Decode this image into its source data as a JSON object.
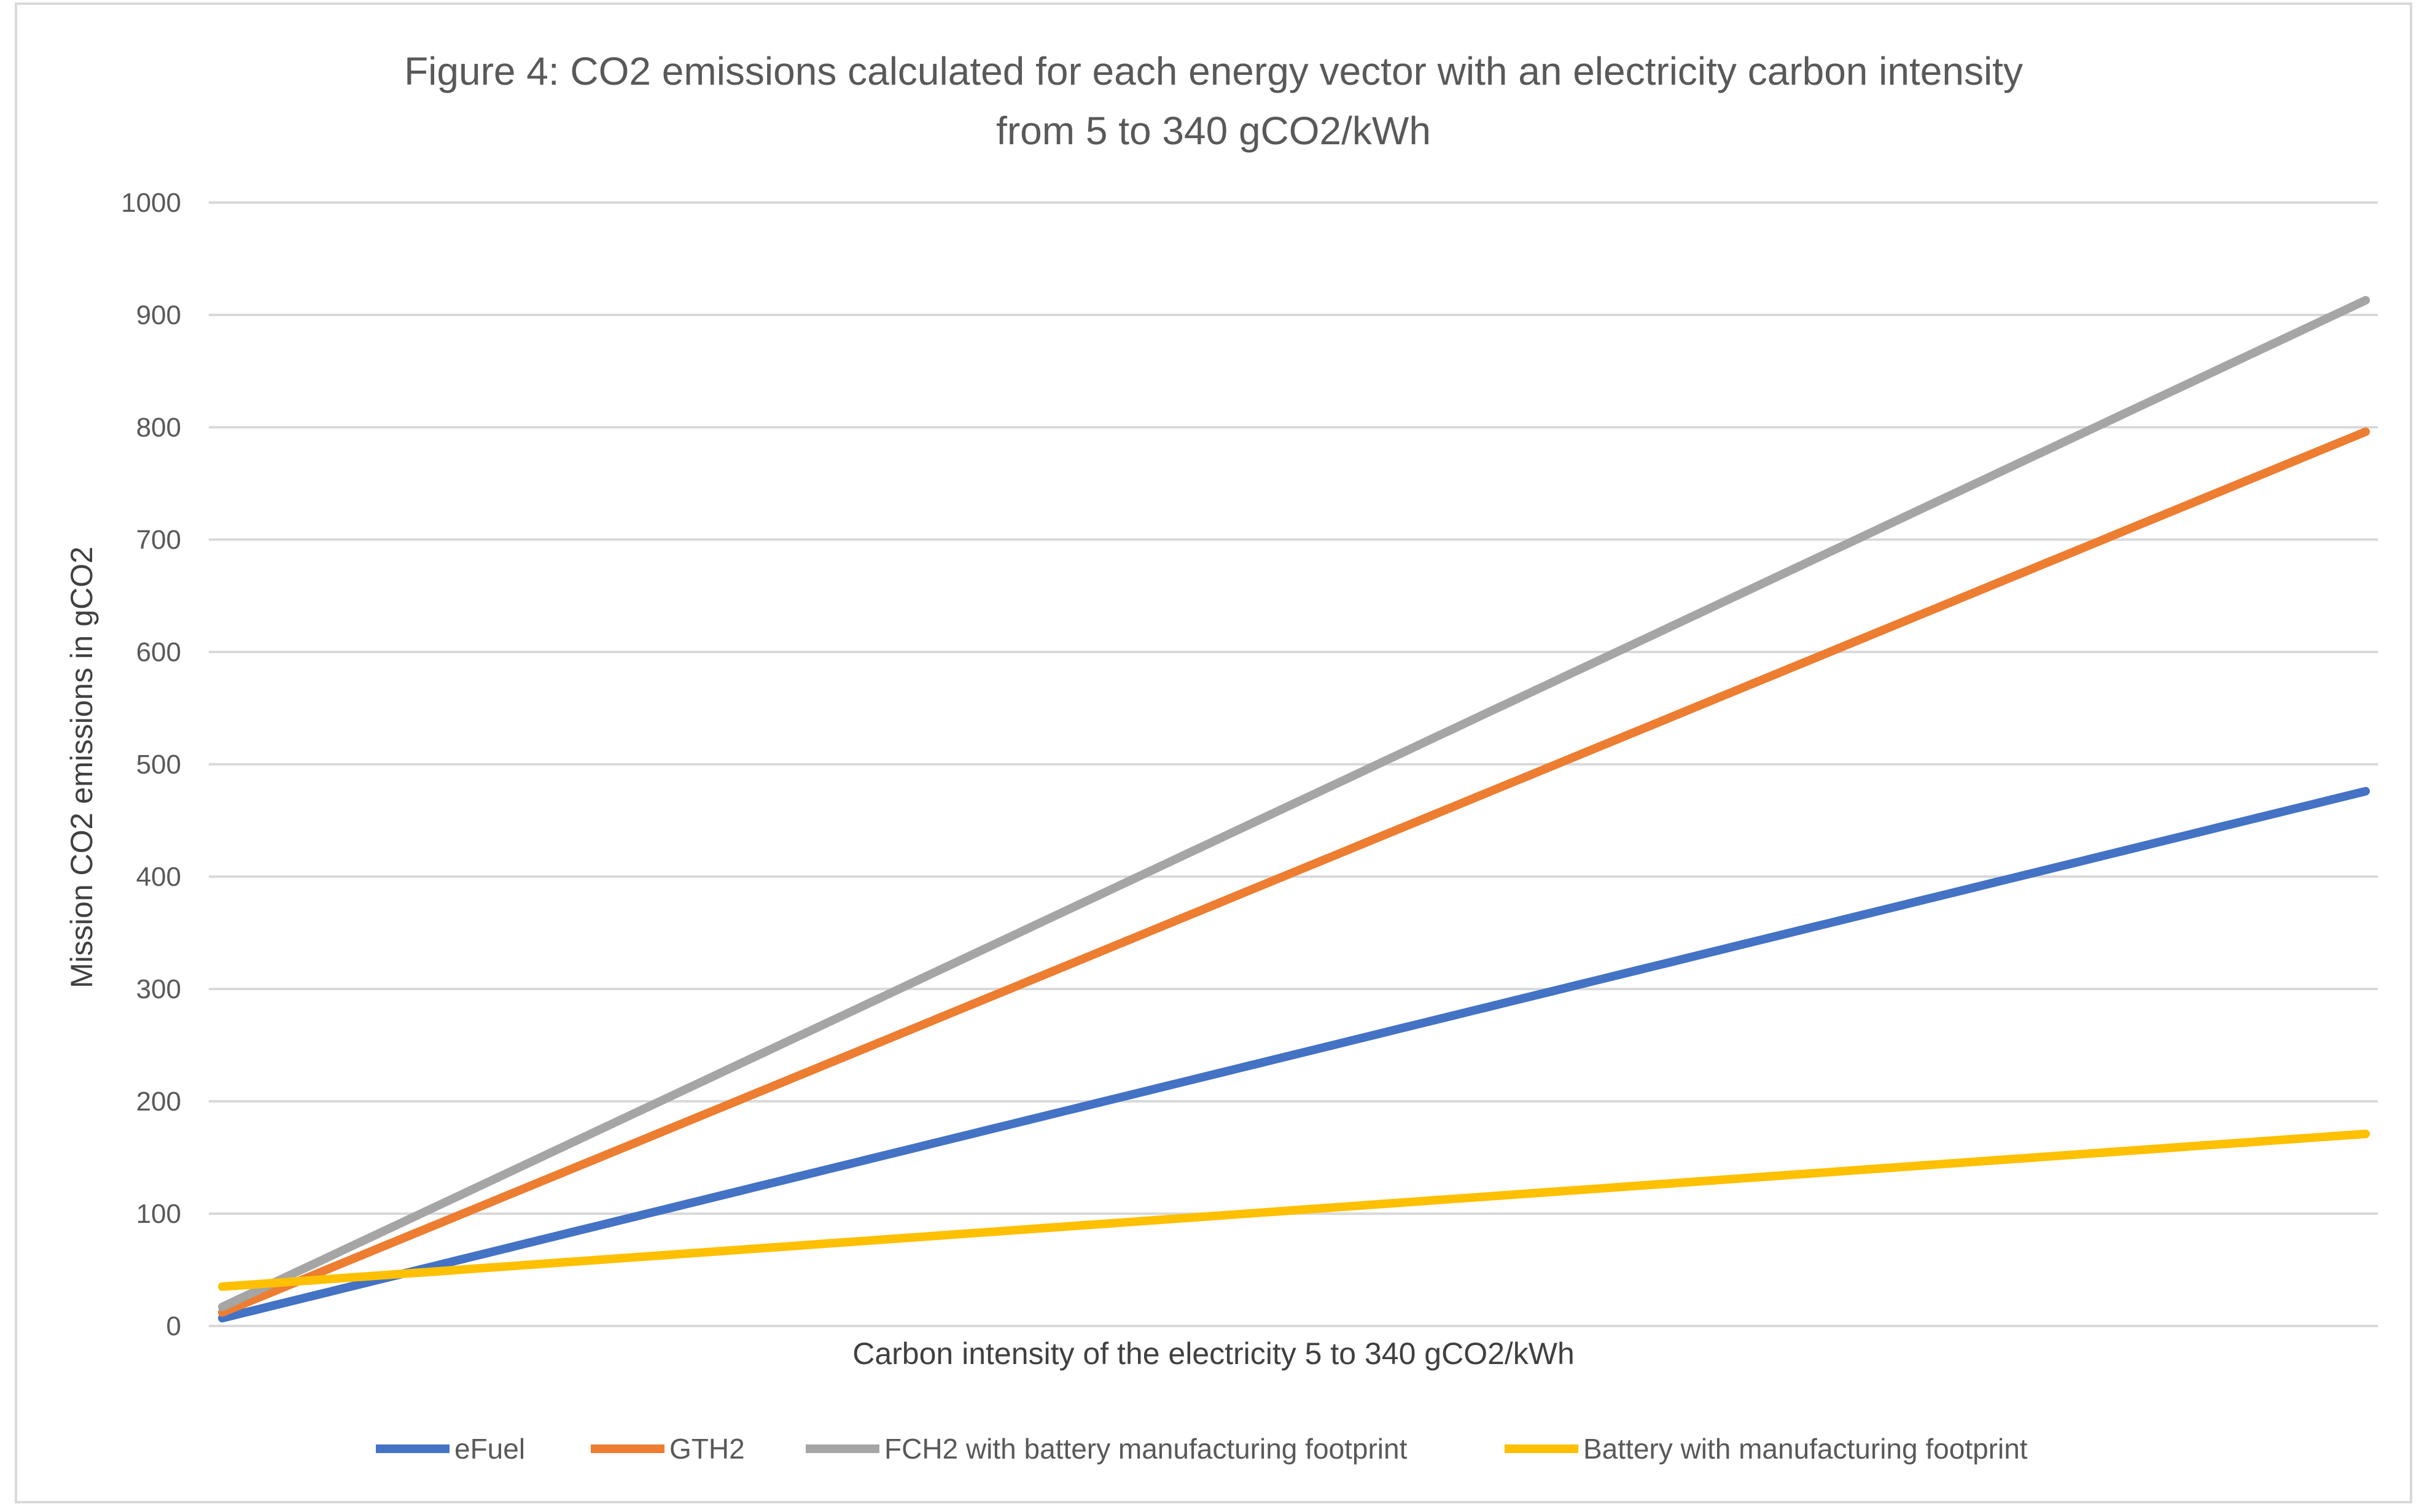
{
  "chart_data": {
    "type": "line",
    "title_line1": "Figure 4: CO2 emissions calculated for each energy vector with an electricity carbon intensity",
    "title_line2": "from 5 to 340 gCO2/kWh",
    "xlabel": "Carbon intensity of the electricity 5 to 340  gCO2/kWh",
    "ylabel": "Mission CO2 emissions in gCO2",
    "xlim": [
      5,
      340
    ],
    "ylim": [
      0,
      1000
    ],
    "y_ticks": [
      "0",
      "100",
      "200",
      "300",
      "400",
      "500",
      "600",
      "700",
      "800",
      "900",
      "1000"
    ],
    "grid": true,
    "legend_position": "bottom",
    "series": [
      {
        "name": "eFuel",
        "color": "#4472c4",
        "start": 7,
        "end": 476
      },
      {
        "name": "GTH2",
        "color": "#ed7d31",
        "start": 12,
        "end": 796
      },
      {
        "name": "FCH2 with battery manufacturing footprint",
        "color": "#a5a5a5",
        "start": 17,
        "end": 913
      },
      {
        "name": "Battery with manufacturing footprint",
        "color": "#ffc000",
        "start": 35,
        "end": 171
      }
    ]
  }
}
